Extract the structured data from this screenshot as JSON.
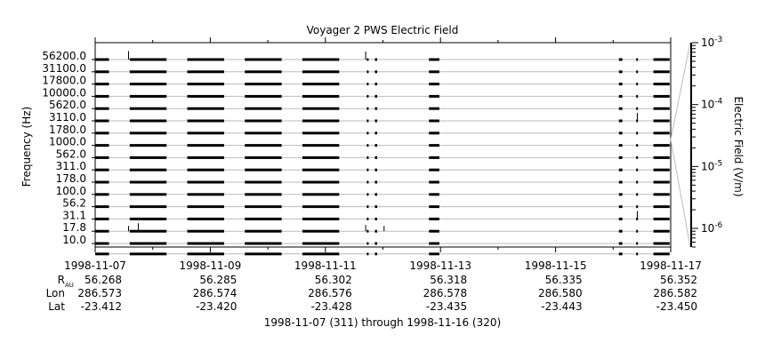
{
  "chart_data": {
    "type": "line",
    "title": "Voyager 2 PWS Electric Field",
    "ylabel": "Frequency (Hz)",
    "zlabel": "Electric Field (V/m)",
    "caption": "1998-11-07 (311) through 1998-11-16 (320)",
    "channels": [
      "56200.0",
      "31100.0",
      "17800.0",
      "10000.0",
      "5620.0",
      "3110.0",
      "1780.0",
      "1000.0",
      "562.0",
      "311.0",
      "178.0",
      "100.0",
      "56.2",
      "31.1",
      "17.8",
      "10.0"
    ],
    "xlim": [
      "1998-11-07",
      "1998-11-17"
    ],
    "x_ticks": [
      "1998-11-07",
      "1998-11-09",
      "1998-11-11",
      "1998-11-13",
      "1998-11-15",
      "1998-11-17"
    ],
    "ephemeris": {
      "row_labels": [
        "R",
        "Lon",
        "Lat"
      ],
      "r_subscript": "AU",
      "R": [
        "56.268",
        "56.285",
        "56.302",
        "56.318",
        "56.335",
        "56.352"
      ],
      "Lon": [
        "286.573",
        "286.574",
        "286.576",
        "286.578",
        "286.580",
        "286.582"
      ],
      "Lat": [
        "-23.412",
        "-23.420",
        "-23.428",
        "-23.435",
        "-23.443",
        "-23.450"
      ]
    },
    "colorbar": {
      "scale": "log",
      "range": [
        5e-07,
        0.001
      ],
      "tick_base": "10",
      "tick_exponents": [
        "-3",
        "-4",
        "-5",
        "-6"
      ]
    },
    "data_coverage_days": [
      [
        0.0,
        0.24
      ],
      [
        0.6,
        1.24
      ],
      [
        1.6,
        2.24
      ],
      [
        2.6,
        3.24
      ],
      [
        3.6,
        4.24
      ],
      [
        4.72,
        4.74
      ],
      [
        4.86,
        4.9
      ],
      [
        5.8,
        5.98
      ],
      [
        9.1,
        9.16
      ],
      [
        9.4,
        9.42
      ],
      [
        9.7,
        9.98
      ]
    ],
    "spikes": [
      {
        "day": 0.58,
        "channel": "56200.0",
        "rel": 0.95
      },
      {
        "day": 0.58,
        "channel": "17.8",
        "rel": 0.6
      },
      {
        "day": 0.75,
        "channel": "17.8",
        "rel": 0.9
      },
      {
        "day": 4.7,
        "channel": "56200.0",
        "rel": 0.9
      },
      {
        "day": 4.7,
        "channel": "17.8",
        "rel": 0.7
      },
      {
        "day": 5.02,
        "channel": "17.8",
        "rel": 0.6
      },
      {
        "day": 9.42,
        "channel": "3110.0",
        "rel": 0.9
      },
      {
        "day": 9.42,
        "channel": "31.1",
        "rel": 0.9
      }
    ]
  }
}
